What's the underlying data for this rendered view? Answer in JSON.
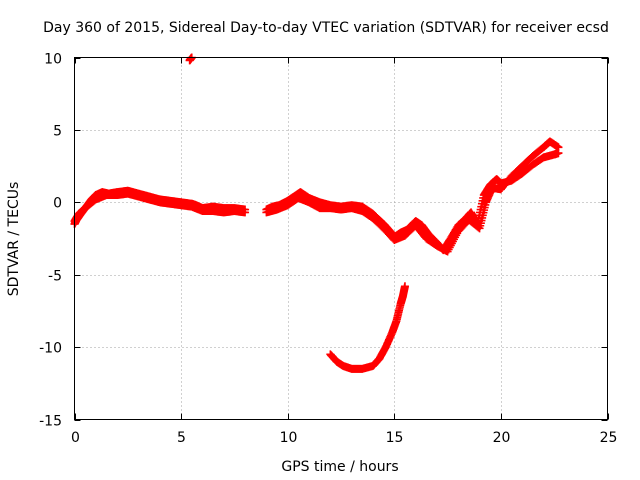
{
  "chart_data": {
    "type": "scatter",
    "title": "Day 360 of 2015, Sidereal Day-to-day VTEC variation (SDTVAR) for receiver ecsd",
    "xlabel": "GPS time / hours",
    "ylabel": "SDTVAR / TECUs",
    "xlim": [
      0,
      25
    ],
    "ylim": [
      -15,
      10
    ],
    "x_ticks": [
      0,
      5,
      10,
      15,
      20,
      25
    ],
    "x_tick_labels": [
      "0",
      "5",
      "10",
      "15",
      "20",
      "25"
    ],
    "y_ticks": [
      -15,
      -10,
      -5,
      0,
      5,
      10
    ],
    "y_tick_labels": [
      "-15",
      "-10",
      "-5",
      "0",
      "5",
      "10"
    ],
    "grid": true,
    "marker": "+",
    "color": "#ff0000",
    "series": [
      {
        "name": "SDTVAR",
        "segments": [
          [
            [
              0.0,
              -1.5
            ],
            [
              0.1,
              -1.2
            ],
            [
              0.2,
              -1.0
            ],
            [
              0.4,
              -0.6
            ],
            [
              0.6,
              -0.2
            ],
            [
              0.8,
              0.2
            ],
            [
              1.0,
              0.5
            ],
            [
              1.3,
              0.7
            ],
            [
              1.6,
              0.6
            ],
            [
              2.0,
              0.7
            ],
            [
              2.5,
              0.8
            ],
            [
              3.0,
              0.6
            ],
            [
              3.5,
              0.4
            ],
            [
              4.0,
              0.2
            ],
            [
              4.5,
              0.1
            ],
            [
              5.0,
              0.0
            ],
            [
              5.5,
              -0.1
            ],
            [
              5.7,
              -0.2
            ],
            [
              6.0,
              -0.4
            ],
            [
              6.5,
              -0.3
            ],
            [
              7.0,
              -0.4
            ],
            [
              7.5,
              -0.4
            ],
            [
              8.0,
              -0.5
            ]
          ],
          [
            [
              0.0,
              -1.3
            ],
            [
              0.2,
              -0.8
            ],
            [
              0.5,
              -0.4
            ],
            [
              1.0,
              0.2
            ],
            [
              1.5,
              0.5
            ],
            [
              2.0,
              0.5
            ],
            [
              2.5,
              0.6
            ],
            [
              3.0,
              0.4
            ],
            [
              3.5,
              0.2
            ],
            [
              4.0,
              0.0
            ],
            [
              4.5,
              -0.1
            ],
            [
              5.0,
              -0.2
            ],
            [
              5.5,
              -0.3
            ],
            [
              6.0,
              -0.6
            ],
            [
              6.5,
              -0.6
            ],
            [
              7.0,
              -0.7
            ],
            [
              7.5,
              -0.6
            ],
            [
              8.0,
              -0.7
            ]
          ],
          [
            [
              5.4,
              9.8
            ],
            [
              5.5,
              10.0
            ]
          ],
          [
            [
              9.0,
              -0.5
            ],
            [
              9.3,
              -0.3
            ],
            [
              9.6,
              -0.2
            ],
            [
              10.0,
              0.1
            ],
            [
              10.3,
              0.4
            ],
            [
              10.6,
              0.7
            ],
            [
              11.0,
              0.3
            ],
            [
              11.5,
              0.0
            ],
            [
              12.0,
              -0.2
            ],
            [
              12.5,
              -0.3
            ],
            [
              13.0,
              -0.2
            ],
            [
              13.5,
              -0.3
            ],
            [
              14.0,
              -0.8
            ],
            [
              14.5,
              -1.5
            ],
            [
              14.8,
              -2.0
            ],
            [
              15.0,
              -2.4
            ],
            [
              15.3,
              -2.1
            ],
            [
              15.6,
              -1.9
            ],
            [
              16.0,
              -1.3
            ],
            [
              16.3,
              -1.6
            ],
            [
              16.6,
              -2.2
            ],
            [
              17.0,
              -2.8
            ],
            [
              17.3,
              -3.3
            ],
            [
              17.6,
              -2.6
            ],
            [
              18.0,
              -1.6
            ],
            [
              18.3,
              -1.2
            ],
            [
              18.6,
              -0.7
            ],
            [
              18.9,
              -1.5
            ],
            [
              19.2,
              0.5
            ],
            [
              19.5,
              1.2
            ],
            [
              19.8,
              1.6
            ],
            [
              20.0,
              1.3
            ],
            [
              20.5,
              1.5
            ],
            [
              21.0,
              2.0
            ],
            [
              21.5,
              2.6
            ],
            [
              22.0,
              3.1
            ],
            [
              22.5,
              3.3
            ],
            [
              22.7,
              3.4
            ]
          ],
          [
            [
              9.0,
              -0.7
            ],
            [
              9.5,
              -0.5
            ],
            [
              10.0,
              -0.2
            ],
            [
              10.5,
              0.3
            ],
            [
              11.0,
              0.0
            ],
            [
              11.5,
              -0.4
            ],
            [
              12.0,
              -0.4
            ],
            [
              12.5,
              -0.5
            ],
            [
              13.0,
              -0.4
            ],
            [
              13.5,
              -0.6
            ],
            [
              14.0,
              -1.1
            ],
            [
              14.5,
              -1.8
            ],
            [
              15.0,
              -2.6
            ],
            [
              15.5,
              -2.3
            ],
            [
              16.0,
              -1.6
            ],
            [
              16.5,
              -2.5
            ],
            [
              17.0,
              -3.0
            ],
            [
              17.5,
              -3.4
            ],
            [
              18.0,
              -2.0
            ],
            [
              18.5,
              -1.2
            ],
            [
              19.0,
              -1.8
            ],
            [
              19.3,
              0.0
            ],
            [
              19.6,
              1.0
            ],
            [
              20.0,
              0.9
            ],
            [
              20.5,
              1.8
            ],
            [
              21.0,
              2.5
            ],
            [
              21.5,
              3.2
            ],
            [
              22.0,
              3.8
            ],
            [
              22.3,
              4.2
            ],
            [
              22.7,
              3.8
            ]
          ],
          [
            [
              12.0,
              -10.5
            ],
            [
              12.3,
              -11.0
            ],
            [
              12.6,
              -11.3
            ],
            [
              13.0,
              -11.5
            ],
            [
              13.5,
              -11.5
            ],
            [
              14.0,
              -11.3
            ],
            [
              14.3,
              -10.8
            ],
            [
              14.6,
              -10.0
            ],
            [
              14.9,
              -9.0
            ],
            [
              15.1,
              -8.2
            ],
            [
              15.3,
              -7.0
            ],
            [
              15.4,
              -6.5
            ],
            [
              15.5,
              -5.8
            ]
          ]
        ]
      }
    ]
  }
}
